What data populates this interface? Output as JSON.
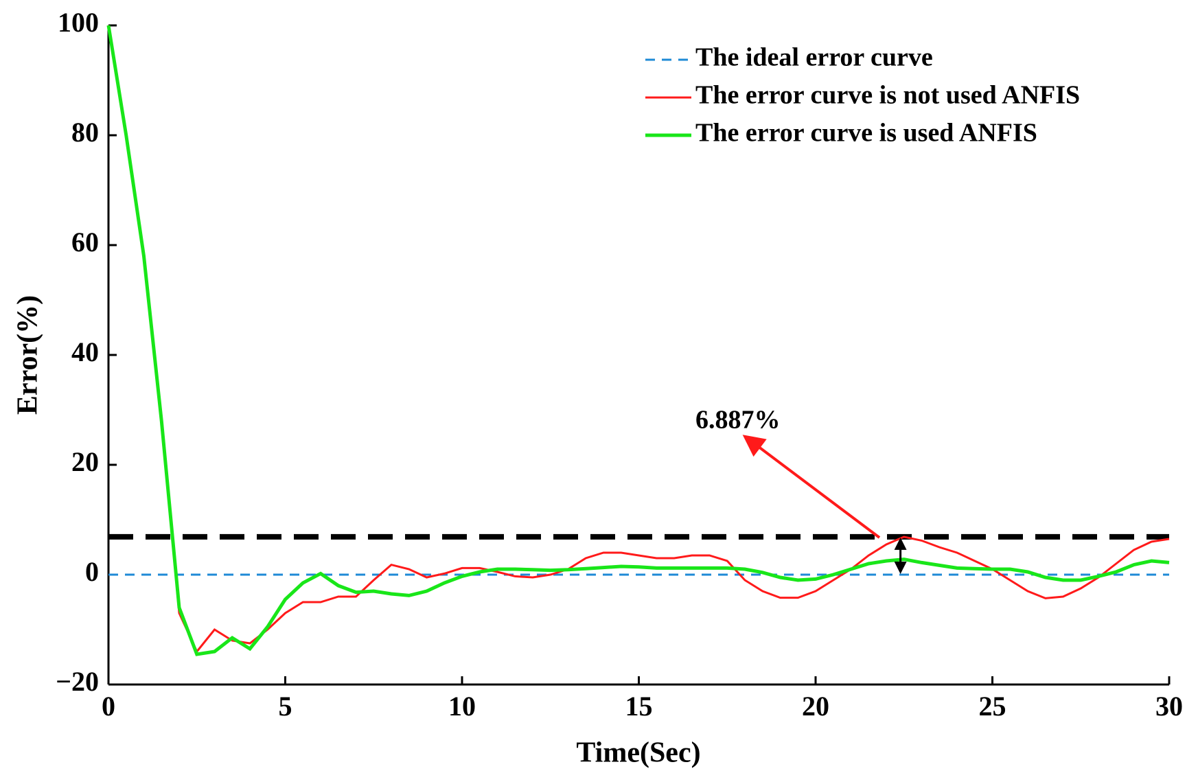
{
  "chart_data": {
    "type": "line",
    "xlabel": "Time(Sec)",
    "ylabel": "Error(%)",
    "x": [
      0,
      0.5,
      1,
      1.5,
      2,
      2.5,
      3,
      3.5,
      4,
      4.5,
      5,
      5.5,
      6,
      6.5,
      7,
      7.5,
      8,
      8.5,
      9,
      9.5,
      10,
      10.5,
      11,
      11.5,
      12,
      12.5,
      13,
      13.5,
      14,
      14.5,
      15,
      15.5,
      16,
      16.5,
      17,
      17.5,
      18,
      18.5,
      19,
      19.5,
      20,
      20.5,
      21,
      21.5,
      22,
      22.5,
      23,
      23.5,
      24,
      24.5,
      25,
      25.5,
      26,
      26.5,
      27,
      27.5,
      28,
      28.5,
      29,
      29.5,
      30
    ],
    "series": [
      {
        "name": "The ideal error curve",
        "color": "#1f8ad6",
        "dashed": true,
        "values": [
          0,
          0,
          0,
          0,
          0,
          0,
          0,
          0,
          0,
          0,
          0,
          0,
          0,
          0,
          0,
          0,
          0,
          0,
          0,
          0,
          0,
          0,
          0,
          0,
          0,
          0,
          0,
          0,
          0,
          0,
          0,
          0,
          0,
          0,
          0,
          0,
          0,
          0,
          0,
          0,
          0,
          0,
          0,
          0,
          0,
          0,
          0,
          0,
          0,
          0,
          0,
          0,
          0,
          0,
          0,
          0,
          0,
          0,
          0,
          0,
          0
        ]
      },
      {
        "name": "The error curve is not used ANFIS",
        "color": "#ff1a1a",
        "dashed": false,
        "values": [
          100,
          80,
          58,
          28,
          -7,
          -14,
          -10,
          -12,
          -12.5,
          -10,
          -7,
          -5,
          -5,
          -4,
          -4,
          -1,
          1.8,
          1,
          -0.5,
          0.2,
          1.2,
          1.2,
          0.5,
          -0.3,
          -0.5,
          0,
          1,
          3,
          4,
          4,
          3.5,
          3,
          3,
          3.5,
          3.5,
          2.5,
          -1,
          -3,
          -4.2,
          -4.2,
          -3,
          -1,
          1,
          3.5,
          5.5,
          6.887,
          6.2,
          5,
          4,
          2.5,
          1,
          -1,
          -3,
          -4.3,
          -4,
          -2.5,
          -0.5,
          2,
          4.5,
          6,
          6.5
        ]
      },
      {
        "name": "The error curve is used ANFIS",
        "color": "#19e619",
        "dashed": false,
        "values": [
          100,
          80,
          58,
          28,
          -6,
          -14.5,
          -14,
          -11.5,
          -13.5,
          -9.5,
          -4.5,
          -1.5,
          0.2,
          -2,
          -3.2,
          -3,
          -3.5,
          -3.8,
          -3,
          -1.5,
          -0.3,
          0.5,
          1,
          1,
          0.9,
          0.8,
          0.9,
          1.1,
          1.3,
          1.5,
          1.4,
          1.2,
          1.2,
          1.2,
          1.2,
          1.2,
          1,
          0.4,
          -0.5,
          -1,
          -0.8,
          0,
          1,
          2,
          2.5,
          2.8,
          2.2,
          1.7,
          1.2,
          1.1,
          1,
          1,
          0.5,
          -0.5,
          -1,
          -1,
          -0.3,
          0.5,
          1.8,
          2.5,
          2.2
        ]
      }
    ],
    "annotation": {
      "text": "6.887%",
      "value": 6.887
    },
    "xlim": [
      0,
      30
    ],
    "ylim": [
      -20,
      100
    ],
    "xticks": [
      0,
      5,
      10,
      15,
      20,
      25,
      30
    ],
    "yticks": [
      {
        "value": -20,
        "label": "−20"
      },
      0,
      20,
      40,
      60,
      80,
      100
    ],
    "legend": "upper right"
  }
}
